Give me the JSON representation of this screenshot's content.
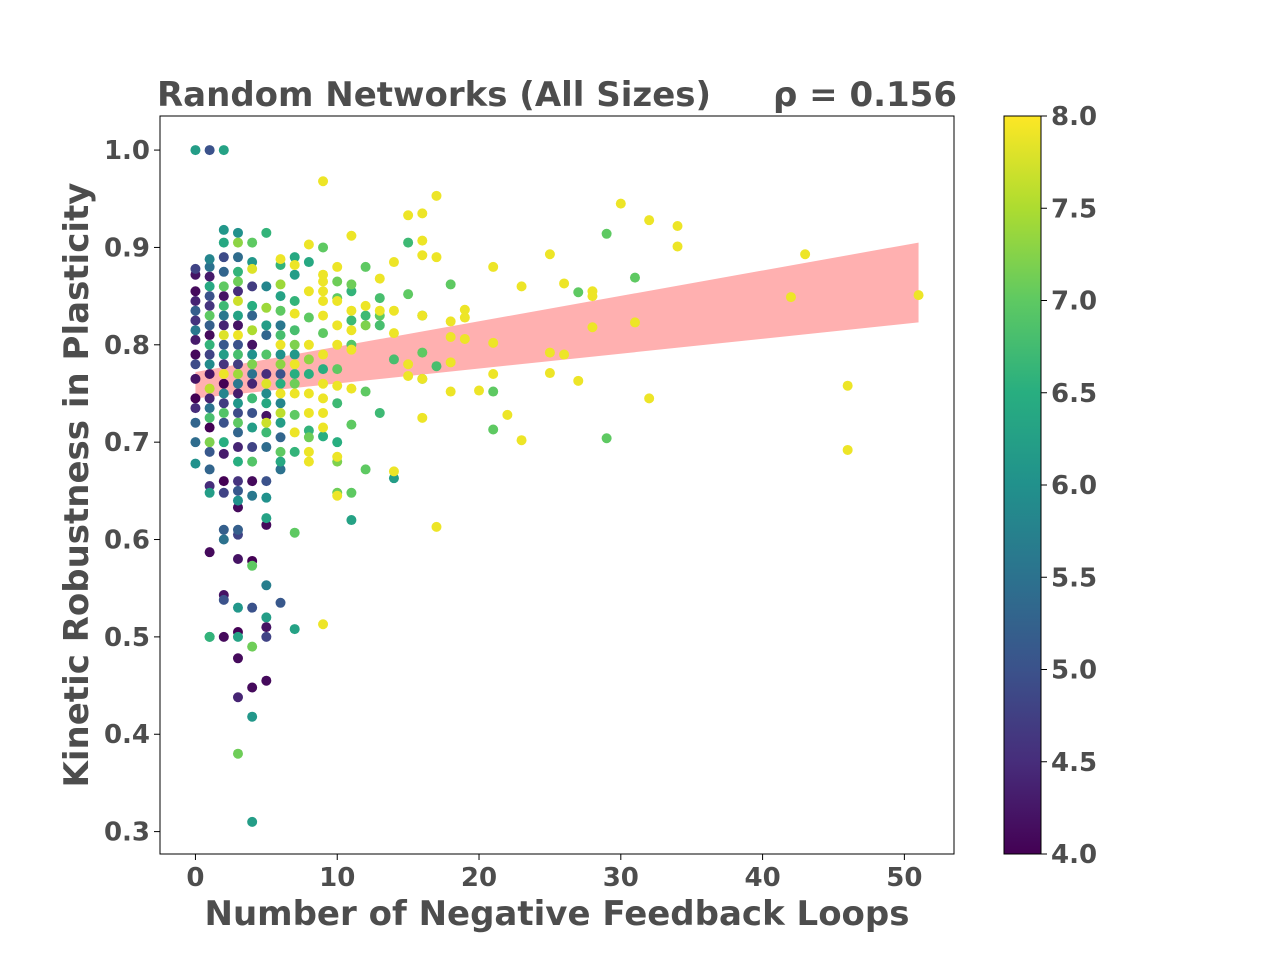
{
  "chart_data": {
    "type": "scatter",
    "title": "Random Networks (All Sizes)",
    "annotation": "ρ = 0.156",
    "xlabel": "Number of Negative Feedback Loops",
    "ylabel": "Kinetic Robustness in Plasticity",
    "xlim": [
      -2.5,
      53.5
    ],
    "ylim": [
      0.277,
      1.035
    ],
    "xticks": [
      0,
      10,
      20,
      30,
      40,
      50
    ],
    "xtick_labels": [
      "0",
      "10",
      "20",
      "30",
      "40",
      "50"
    ],
    "yticks": [
      0.3,
      0.4,
      0.5,
      0.6,
      0.7,
      0.8,
      0.9,
      1.0
    ],
    "ytick_labels": [
      "0.3",
      "0.4",
      "0.5",
      "0.6",
      "0.7",
      "0.8",
      "0.9",
      "1.0"
    ],
    "grid": false,
    "colorbar": {
      "colormap": "viridis",
      "range": [
        4.0,
        8.0
      ],
      "ticks": [
        4.0,
        4.5,
        5.0,
        5.5,
        6.0,
        6.5,
        7.0,
        7.5,
        8.0
      ],
      "tick_labels": [
        "4.0",
        "4.5",
        "5.0",
        "5.5",
        "6.0",
        "6.5",
        "7.0",
        "7.5",
        "8.0"
      ]
    },
    "trend_band": {
      "color": "#ffb0b0",
      "x": [
        0,
        51
      ],
      "lower": [
        0.745,
        0.823
      ],
      "upper": [
        0.772,
        0.905
      ]
    },
    "points": [
      [
        0,
        1.0,
        6.2
      ],
      [
        1,
        1.0,
        5.0
      ],
      [
        2,
        1.0,
        6.3
      ],
      [
        0,
        0.878,
        4.8
      ],
      [
        0,
        0.872,
        4.2
      ],
      [
        0,
        0.855,
        4.1
      ],
      [
        0,
        0.845,
        4.4
      ],
      [
        0,
        0.835,
        5.2
      ],
      [
        0,
        0.825,
        4.6
      ],
      [
        0,
        0.815,
        5.6
      ],
      [
        0,
        0.805,
        4.3
      ],
      [
        0,
        0.79,
        4.1
      ],
      [
        0,
        0.78,
        4.9
      ],
      [
        0,
        0.765,
        4.2
      ],
      [
        0,
        0.745,
        4.0
      ],
      [
        0,
        0.735,
        4.5
      ],
      [
        0,
        0.72,
        5.3
      ],
      [
        0,
        0.7,
        5.4
      ],
      [
        0,
        0.678,
        6.0
      ],
      [
        1,
        0.888,
        5.8
      ],
      [
        1,
        0.88,
        5.5
      ],
      [
        1,
        0.87,
        4.3
      ],
      [
        1,
        0.86,
        6.4
      ],
      [
        1,
        0.85,
        5.0
      ],
      [
        1,
        0.84,
        4.6
      ],
      [
        1,
        0.83,
        7.0
      ],
      [
        1,
        0.82,
        5.2
      ],
      [
        1,
        0.81,
        4.1
      ],
      [
        1,
        0.8,
        6.6
      ],
      [
        1,
        0.79,
        4.8
      ],
      [
        1,
        0.78,
        5.9
      ],
      [
        1,
        0.77,
        4.2
      ],
      [
        1,
        0.755,
        7.6
      ],
      [
        1,
        0.745,
        4.4
      ],
      [
        1,
        0.735,
        5.5
      ],
      [
        1,
        0.725,
        6.8
      ],
      [
        1,
        0.715,
        4.0
      ],
      [
        1,
        0.7,
        7.2
      ],
      [
        1,
        0.69,
        5.1
      ],
      [
        1,
        0.672,
        5.3
      ],
      [
        1,
        0.655,
        4.5
      ],
      [
        1,
        0.648,
        6.2
      ],
      [
        1,
        0.587,
        4.1
      ],
      [
        1,
        0.5,
        5.9
      ],
      [
        1,
        0.5,
        6.6
      ],
      [
        2,
        0.918,
        6.1
      ],
      [
        2,
        0.905,
        6.4
      ],
      [
        2,
        0.89,
        4.9
      ],
      [
        2,
        0.875,
        5.3
      ],
      [
        2,
        0.86,
        7.0
      ],
      [
        2,
        0.85,
        4.2
      ],
      [
        2,
        0.84,
        6.7
      ],
      [
        2,
        0.83,
        5.6
      ],
      [
        2,
        0.82,
        4.4
      ],
      [
        2,
        0.81,
        7.8
      ],
      [
        2,
        0.8,
        5.1
      ],
      [
        2,
        0.79,
        6.2
      ],
      [
        2,
        0.78,
        4.6
      ],
      [
        2,
        0.77,
        7.9
      ],
      [
        2,
        0.76,
        4.0
      ],
      [
        2,
        0.75,
        5.8
      ],
      [
        2,
        0.74,
        4.7
      ],
      [
        2,
        0.73,
        6.9
      ],
      [
        2,
        0.72,
        5.0
      ],
      [
        2,
        0.7,
        6.5
      ],
      [
        2,
        0.688,
        4.3
      ],
      [
        2,
        0.66,
        4.0
      ],
      [
        2,
        0.648,
        4.8
      ],
      [
        2,
        0.61,
        5.2
      ],
      [
        2,
        0.6,
        5.5
      ],
      [
        2,
        0.543,
        4.2
      ],
      [
        2,
        0.538,
        5.0
      ],
      [
        2,
        0.5,
        4.1
      ],
      [
        3,
        0.915,
        6.0
      ],
      [
        3,
        0.905,
        7.3
      ],
      [
        3,
        0.89,
        5.4
      ],
      [
        3,
        0.875,
        6.6
      ],
      [
        3,
        0.865,
        7.1
      ],
      [
        3,
        0.855,
        4.5
      ],
      [
        3,
        0.845,
        7.7
      ],
      [
        3,
        0.83,
        6.3
      ],
      [
        3,
        0.82,
        4.2
      ],
      [
        3,
        0.81,
        7.9
      ],
      [
        3,
        0.8,
        5.0
      ],
      [
        3,
        0.79,
        6.8
      ],
      [
        3,
        0.78,
        4.7
      ],
      [
        3,
        0.77,
        7.4
      ],
      [
        3,
        0.76,
        5.6
      ],
      [
        3,
        0.75,
        4.3
      ],
      [
        3,
        0.74,
        6.1
      ],
      [
        3,
        0.73,
        4.9
      ],
      [
        3,
        0.72,
        7.0
      ],
      [
        3,
        0.71,
        5.3
      ],
      [
        3,
        0.695,
        4.4
      ],
      [
        3,
        0.68,
        6.5
      ],
      [
        3,
        0.66,
        4.6
      ],
      [
        3,
        0.65,
        5.1
      ],
      [
        3,
        0.64,
        6.0
      ],
      [
        3,
        0.633,
        4.1
      ],
      [
        3,
        0.61,
        5.2
      ],
      [
        3,
        0.605,
        4.8
      ],
      [
        3,
        0.58,
        4.2
      ],
      [
        3,
        0.53,
        6.1
      ],
      [
        3,
        0.505,
        4.0
      ],
      [
        3,
        0.5,
        6.3
      ],
      [
        3,
        0.478,
        4.1
      ],
      [
        3,
        0.438,
        4.4
      ],
      [
        3,
        0.38,
        7.1
      ],
      [
        4,
        0.905,
        7.0
      ],
      [
        4,
        0.885,
        6.1
      ],
      [
        4,
        0.878,
        7.8
      ],
      [
        4,
        0.86,
        4.7
      ],
      [
        4,
        0.84,
        6.5
      ],
      [
        4,
        0.83,
        5.3
      ],
      [
        4,
        0.815,
        7.5
      ],
      [
        4,
        0.8,
        4.2
      ],
      [
        4,
        0.79,
        6.0
      ],
      [
        4,
        0.78,
        7.2
      ],
      [
        4,
        0.77,
        5.5
      ],
      [
        4,
        0.76,
        4.4
      ],
      [
        4,
        0.745,
        6.7
      ],
      [
        4,
        0.73,
        5.0
      ],
      [
        4,
        0.715,
        6.2
      ],
      [
        4,
        0.695,
        4.8
      ],
      [
        4,
        0.68,
        6.9
      ],
      [
        4,
        0.66,
        4.1
      ],
      [
        4,
        0.645,
        5.6
      ],
      [
        4,
        0.578,
        4.0
      ],
      [
        4,
        0.573,
        7.0
      ],
      [
        4,
        0.53,
        5.0
      ],
      [
        4,
        0.49,
        7.1
      ],
      [
        4,
        0.448,
        4.1
      ],
      [
        4,
        0.418,
        6.1
      ],
      [
        4,
        0.31,
        6.2
      ],
      [
        5,
        0.915,
        6.6
      ],
      [
        5,
        0.86,
        5.8
      ],
      [
        5,
        0.838,
        7.4
      ],
      [
        5,
        0.82,
        6.2
      ],
      [
        5,
        0.81,
        5.3
      ],
      [
        5,
        0.79,
        6.9
      ],
      [
        5,
        0.77,
        4.5
      ],
      [
        5,
        0.76,
        7.8
      ],
      [
        5,
        0.75,
        5.9
      ],
      [
        5,
        0.74,
        6.4
      ],
      [
        5,
        0.727,
        4.2
      ],
      [
        5,
        0.72,
        7.7
      ],
      [
        5,
        0.71,
        6.7
      ],
      [
        5,
        0.695,
        5.4
      ],
      [
        5,
        0.66,
        5.0
      ],
      [
        5,
        0.643,
        6.0
      ],
      [
        5,
        0.622,
        6.3
      ],
      [
        5,
        0.615,
        4.1
      ],
      [
        5,
        0.553,
        5.7
      ],
      [
        5,
        0.52,
        6.2
      ],
      [
        5,
        0.51,
        4.2
      ],
      [
        5,
        0.5,
        4.8
      ],
      [
        5,
        0.455,
        4.1
      ],
      [
        6,
        0.888,
        7.9
      ],
      [
        6,
        0.882,
        6.6
      ],
      [
        6,
        0.862,
        7.4
      ],
      [
        6,
        0.85,
        6.3
      ],
      [
        6,
        0.835,
        7.0
      ],
      [
        6,
        0.82,
        5.6
      ],
      [
        6,
        0.81,
        6.8
      ],
      [
        6,
        0.8,
        7.9
      ],
      [
        6,
        0.79,
        6.0
      ],
      [
        6,
        0.78,
        7.3
      ],
      [
        6,
        0.77,
        5.0
      ],
      [
        6,
        0.76,
        6.5
      ],
      [
        6,
        0.75,
        7.9
      ],
      [
        6,
        0.74,
        5.8
      ],
      [
        6,
        0.73,
        7.6
      ],
      [
        6,
        0.72,
        6.2
      ],
      [
        6,
        0.705,
        5.3
      ],
      [
        6,
        0.69,
        7.0
      ],
      [
        6,
        0.68,
        6.4
      ],
      [
        6,
        0.672,
        5.5
      ],
      [
        6,
        0.535,
        5.1
      ],
      [
        7,
        0.89,
        6.4
      ],
      [
        7,
        0.882,
        7.9
      ],
      [
        7,
        0.872,
        6.2
      ],
      [
        7,
        0.845,
        6.6
      ],
      [
        7,
        0.832,
        7.9
      ],
      [
        7,
        0.815,
        6.8
      ],
      [
        7,
        0.8,
        7.2
      ],
      [
        7,
        0.79,
        6.1
      ],
      [
        7,
        0.78,
        7.9
      ],
      [
        7,
        0.77,
        6.5
      ],
      [
        7,
        0.76,
        7.1
      ],
      [
        7,
        0.75,
        7.9
      ],
      [
        7,
        0.728,
        7.0
      ],
      [
        7,
        0.71,
        7.9
      ],
      [
        7,
        0.69,
        6.6
      ],
      [
        7,
        0.607,
        7.0
      ],
      [
        7,
        0.508,
        6.3
      ],
      [
        8,
        0.903,
        7.9
      ],
      [
        8,
        0.885,
        6.4
      ],
      [
        8,
        0.855,
        7.9
      ],
      [
        8,
        0.828,
        7.0
      ],
      [
        8,
        0.8,
        7.9
      ],
      [
        8,
        0.785,
        7.3
      ],
      [
        8,
        0.77,
        6.5
      ],
      [
        8,
        0.75,
        7.9
      ],
      [
        8,
        0.73,
        7.9
      ],
      [
        8,
        0.712,
        6.6
      ],
      [
        8,
        0.705,
        7.1
      ],
      [
        8,
        0.69,
        7.9
      ],
      [
        8,
        0.68,
        7.9
      ],
      [
        9,
        0.968,
        7.9
      ],
      [
        9,
        0.9,
        7.0
      ],
      [
        9,
        0.872,
        7.9
      ],
      [
        9,
        0.865,
        7.9
      ],
      [
        9,
        0.855,
        7.9
      ],
      [
        9,
        0.845,
        7.9
      ],
      [
        9,
        0.83,
        7.9
      ],
      [
        9,
        0.812,
        7.0
      ],
      [
        9,
        0.79,
        7.9
      ],
      [
        9,
        0.775,
        6.5
      ],
      [
        9,
        0.76,
        7.9
      ],
      [
        9,
        0.745,
        7.9
      ],
      [
        9,
        0.73,
        7.9
      ],
      [
        9,
        0.715,
        7.9
      ],
      [
        9,
        0.706,
        6.5
      ],
      [
        9,
        0.513,
        7.9
      ],
      [
        10,
        0.88,
        7.9
      ],
      [
        10,
        0.865,
        7.1
      ],
      [
        10,
        0.848,
        7.0
      ],
      [
        10,
        0.845,
        7.9
      ],
      [
        10,
        0.82,
        7.9
      ],
      [
        10,
        0.8,
        7.9
      ],
      [
        10,
        0.775,
        7.0
      ],
      [
        10,
        0.758,
        7.9
      ],
      [
        10,
        0.74,
        6.7
      ],
      [
        10,
        0.7,
        6.5
      ],
      [
        10,
        0.685,
        7.9
      ],
      [
        10,
        0.68,
        7.2
      ],
      [
        10,
        0.648,
        7.1
      ],
      [
        10,
        0.645,
        7.9
      ],
      [
        11,
        0.912,
        7.9
      ],
      [
        11,
        0.862,
        7.1
      ],
      [
        11,
        0.855,
        6.6
      ],
      [
        11,
        0.835,
        7.9
      ],
      [
        11,
        0.825,
        6.7
      ],
      [
        11,
        0.815,
        7.9
      ],
      [
        11,
        0.8,
        6.9
      ],
      [
        11,
        0.795,
        7.9
      ],
      [
        11,
        0.755,
        7.9
      ],
      [
        11,
        0.718,
        7.0
      ],
      [
        11,
        0.648,
        7.0
      ],
      [
        11,
        0.62,
        6.3
      ],
      [
        12,
        0.88,
        7.0
      ],
      [
        12,
        0.84,
        7.9
      ],
      [
        12,
        0.83,
        6.7
      ],
      [
        12,
        0.82,
        7.2
      ],
      [
        12,
        0.752,
        7.0
      ],
      [
        12,
        0.672,
        7.0
      ],
      [
        13,
        0.868,
        7.9
      ],
      [
        13,
        0.848,
        6.8
      ],
      [
        13,
        0.835,
        7.9
      ],
      [
        13,
        0.83,
        7.0
      ],
      [
        13,
        0.82,
        6.8
      ],
      [
        13,
        0.73,
        6.7
      ],
      [
        14,
        0.885,
        7.9
      ],
      [
        14,
        0.835,
        7.9
      ],
      [
        14,
        0.812,
        7.9
      ],
      [
        14,
        0.785,
        6.8
      ],
      [
        14,
        0.67,
        7.9
      ],
      [
        14,
        0.663,
        6.2
      ],
      [
        15,
        0.933,
        7.9
      ],
      [
        15,
        0.905,
        6.7
      ],
      [
        15,
        0.852,
        7.0
      ],
      [
        15,
        0.78,
        7.9
      ],
      [
        15,
        0.768,
        7.9
      ],
      [
        16,
        0.935,
        7.9
      ],
      [
        16,
        0.907,
        7.9
      ],
      [
        16,
        0.892,
        7.9
      ],
      [
        16,
        0.83,
        7.9
      ],
      [
        16,
        0.83,
        7.0
      ],
      [
        16,
        0.792,
        7.0
      ],
      [
        16,
        0.765,
        7.0
      ],
      [
        16,
        0.765,
        7.9
      ],
      [
        16,
        0.725,
        7.9
      ],
      [
        17,
        0.953,
        7.9
      ],
      [
        17,
        0.89,
        7.9
      ],
      [
        17,
        0.778,
        6.8
      ],
      [
        17,
        0.613,
        7.9
      ],
      [
        18,
        0.862,
        7.0
      ],
      [
        18,
        0.824,
        7.9
      ],
      [
        18,
        0.808,
        7.9
      ],
      [
        18,
        0.782,
        7.9
      ],
      [
        18,
        0.752,
        7.9
      ],
      [
        19,
        0.836,
        7.9
      ],
      [
        19,
        0.828,
        7.9
      ],
      [
        19,
        0.806,
        7.9
      ],
      [
        20,
        0.753,
        7.9
      ],
      [
        21,
        0.88,
        7.9
      ],
      [
        21,
        0.802,
        7.9
      ],
      [
        21,
        0.77,
        7.9
      ],
      [
        21,
        0.752,
        7.0
      ],
      [
        21,
        0.713,
        7.0
      ],
      [
        22,
        0.728,
        7.9
      ],
      [
        23,
        0.86,
        7.9
      ],
      [
        23,
        0.702,
        7.9
      ],
      [
        25,
        0.893,
        7.9
      ],
      [
        25,
        0.792,
        7.9
      ],
      [
        25,
        0.771,
        7.9
      ],
      [
        26,
        0.863,
        7.9
      ],
      [
        26,
        0.79,
        7.9
      ],
      [
        27,
        0.854,
        7.0
      ],
      [
        27,
        0.763,
        7.9
      ],
      [
        28,
        0.855,
        7.9
      ],
      [
        28,
        0.85,
        7.9
      ],
      [
        28,
        0.818,
        7.9
      ],
      [
        29,
        0.914,
        7.0
      ],
      [
        29,
        0.704,
        7.0
      ],
      [
        30,
        0.945,
        7.9
      ],
      [
        31,
        0.869,
        7.0
      ],
      [
        31,
        0.823,
        7.9
      ],
      [
        32,
        0.928,
        7.9
      ],
      [
        32,
        0.745,
        7.9
      ],
      [
        34,
        0.922,
        7.9
      ],
      [
        34,
        0.901,
        7.9
      ],
      [
        42,
        0.849,
        7.9
      ],
      [
        43,
        0.893,
        7.9
      ],
      [
        46,
        0.758,
        7.9
      ],
      [
        46,
        0.692,
        7.9
      ],
      [
        51,
        0.851,
        7.9
      ]
    ]
  }
}
